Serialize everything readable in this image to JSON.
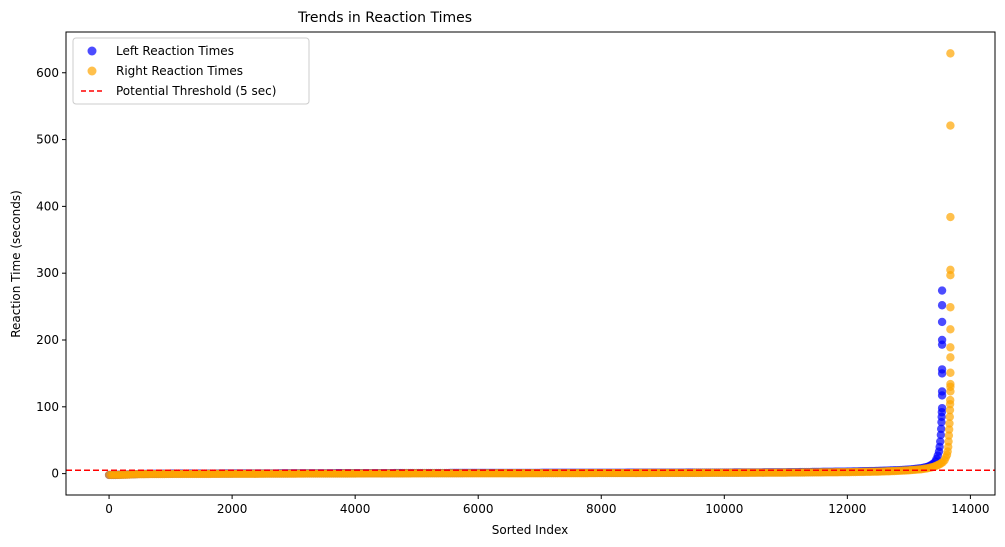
{
  "chart_data": {
    "type": "scatter",
    "title": "Trends in Reaction Times",
    "xlabel": "Sorted Index",
    "ylabel": "Reaction Time (seconds)",
    "xlim": [
      -700,
      14400
    ],
    "ylim": [
      -32,
      661
    ],
    "x_ticks": [
      0,
      2000,
      4000,
      6000,
      8000,
      10000,
      12000,
      14000
    ],
    "y_ticks": [
      0,
      100,
      200,
      300,
      400,
      500,
      600
    ],
    "grid": false,
    "legend_placement": "top-left",
    "series": [
      {
        "name": "Left Reaction Times",
        "color": "#0000ff",
        "alpha": 0.7,
        "points": [
          [
            0,
            -2
          ],
          [
            100,
            -2
          ],
          [
            200,
            -1.5
          ],
          [
            300,
            -1.2
          ],
          [
            400,
            -1
          ],
          [
            500,
            -0.5
          ],
          [
            1000,
            0
          ],
          [
            2000,
            0.2
          ],
          [
            3000,
            0.4
          ],
          [
            4000,
            0.6
          ],
          [
            5000,
            0.8
          ],
          [
            6000,
            1
          ],
          [
            7000,
            1.1
          ],
          [
            8000,
            1.2
          ],
          [
            9000,
            1.4
          ],
          [
            10000,
            1.6
          ],
          [
            11000,
            2
          ],
          [
            11500,
            2.5
          ],
          [
            12000,
            3
          ],
          [
            12500,
            4
          ],
          [
            12800,
            5
          ],
          [
            13000,
            6
          ],
          [
            13200,
            8
          ],
          [
            13300,
            10
          ],
          [
            13350,
            12
          ],
          [
            13400,
            15
          ],
          [
            13430,
            18
          ],
          [
            13450,
            22
          ],
          [
            13470,
            27
          ],
          [
            13490,
            33
          ],
          [
            13500,
            40
          ],
          [
            13510,
            48
          ],
          [
            13520,
            58
          ],
          [
            13525,
            67
          ],
          [
            13530,
            77
          ],
          [
            13533,
            85
          ],
          [
            13536,
            92
          ],
          [
            13540,
            98
          ],
          [
            13540,
            117
          ],
          [
            13540,
            123
          ],
          [
            13540,
            150
          ],
          [
            13540,
            156
          ],
          [
            13540,
            193
          ],
          [
            13540,
            200
          ],
          [
            13540,
            227
          ],
          [
            13540,
            252
          ],
          [
            13540,
            274
          ]
        ]
      },
      {
        "name": "Right Reaction Times",
        "color": "#ffa500",
        "alpha": 0.7,
        "points": [
          [
            0,
            -2
          ],
          [
            100,
            -2
          ],
          [
            200,
            -1.8
          ],
          [
            300,
            -1.5
          ],
          [
            400,
            -1
          ],
          [
            500,
            -0.8
          ],
          [
            1000,
            -0.5
          ],
          [
            2000,
            -0.3
          ],
          [
            3000,
            0
          ],
          [
            4000,
            0.2
          ],
          [
            5000,
            0.4
          ],
          [
            6000,
            0.5
          ],
          [
            7000,
            0.6
          ],
          [
            8000,
            0.8
          ],
          [
            9000,
            1
          ],
          [
            10000,
            1.2
          ],
          [
            11000,
            1.5
          ],
          [
            11500,
            1.8
          ],
          [
            12000,
            2.2
          ],
          [
            12500,
            3
          ],
          [
            12800,
            4
          ],
          [
            13000,
            5
          ],
          [
            13200,
            6.5
          ],
          [
            13300,
            8
          ],
          [
            13400,
            10
          ],
          [
            13450,
            12
          ],
          [
            13500,
            14
          ],
          [
            13550,
            17
          ],
          [
            13580,
            20
          ],
          [
            13600,
            24
          ],
          [
            13620,
            28
          ],
          [
            13630,
            33
          ],
          [
            13640,
            40
          ],
          [
            13645,
            48
          ],
          [
            13650,
            57
          ],
          [
            13655,
            66
          ],
          [
            13660,
            75
          ],
          [
            13665,
            85
          ],
          [
            13668,
            95
          ],
          [
            13670,
            104
          ],
          [
            13672,
            110
          ],
          [
            13675,
            123
          ],
          [
            13675,
            130
          ],
          [
            13675,
            134
          ],
          [
            13675,
            151
          ],
          [
            13675,
            174
          ],
          [
            13675,
            189
          ],
          [
            13675,
            216
          ],
          [
            13675,
            249
          ],
          [
            13675,
            297
          ],
          [
            13675,
            305
          ],
          [
            13675,
            384
          ],
          [
            13675,
            521
          ],
          [
            13675,
            629
          ]
        ]
      },
      {
        "name": "Potential Threshold (5 sec)",
        "type": "hline",
        "y": 5,
        "color": "#ff0000",
        "dash": "dashed"
      }
    ]
  }
}
